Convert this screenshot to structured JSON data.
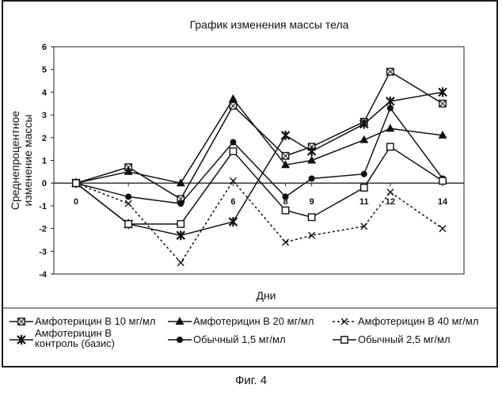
{
  "caption": "Фиг. 4",
  "chart_data": {
    "type": "line",
    "title": "График изменения массы тела",
    "xlabel": "Дни",
    "ylabel": [
      "Среднепроцентное",
      "изменение массы"
    ],
    "x": [
      0,
      2,
      4,
      6,
      8,
      9,
      11,
      12,
      14
    ],
    "x_tick_labels": [
      "0",
      "",
      "",
      "6",
      "8",
      "9",
      "11",
      "12",
      "14"
    ],
    "ylim": [
      -4,
      6
    ],
    "y_ticks": [
      -4,
      -3,
      -2,
      -1,
      0,
      1,
      2,
      3,
      4,
      5,
      6
    ],
    "grid": false,
    "legend_position": "bottom",
    "series": [
      {
        "name": "Амфотерицин В 10 мг/мл",
        "marker": "square-x",
        "values": [
          0,
          0.7,
          -0.7,
          3.4,
          1.2,
          1.6,
          2.7,
          4.9,
          3.5
        ]
      },
      {
        "name": "Амфотерицин В 20 мг/мл",
        "marker": "triangle",
        "values": [
          0,
          0.5,
          0.0,
          3.7,
          0.8,
          1.0,
          1.9,
          2.4,
          2.1
        ]
      },
      {
        "name": "Амфотерицин В 40 мг/мл",
        "marker": "x",
        "dashed": true,
        "values": [
          0,
          -0.9,
          -3.5,
          0.1,
          -2.6,
          -2.3,
          -1.9,
          -0.4,
          -2.0
        ]
      },
      {
        "name": "Амфотерицин В контроль (базис)",
        "legend_lines": [
          "Амфотерицин В",
          "контроль (базис)"
        ],
        "marker": "star",
        "values": [
          0,
          -1.8,
          -2.3,
          -1.7,
          2.1,
          1.4,
          2.6,
          3.6,
          4.0
        ]
      },
      {
        "name": "Обычный 1,5 мг/мл",
        "marker": "circle",
        "values": [
          0,
          -0.6,
          -0.9,
          1.8,
          -0.6,
          0.2,
          0.4,
          3.3,
          0.2
        ]
      },
      {
        "name": "Обычный 2,5 мг/мл",
        "marker": "square",
        "values": [
          0,
          -1.8,
          -1.8,
          1.4,
          -1.2,
          -1.5,
          -0.2,
          1.6,
          0.1
        ]
      }
    ]
  }
}
